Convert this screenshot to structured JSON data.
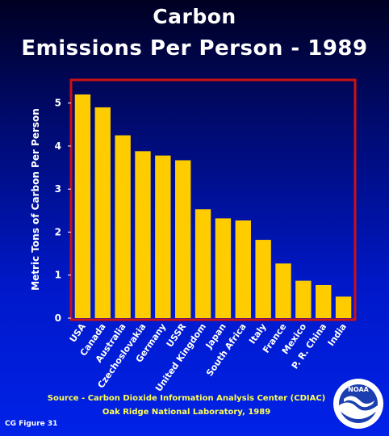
{
  "header": {
    "title_line1": "Carbon",
    "title_line2": "Emissions Per Person - 1989"
  },
  "footer": {
    "source_line1": "Source - Carbon Dioxide Information Analysis Center (CDIAC)",
    "source_line2": "Oak Ridge National Laboratory, 1989",
    "figure_label": "CG Figure 31",
    "logo_text": "NOAA"
  },
  "chart_data": {
    "type": "bar",
    "title": "Carbon Emissions Per Person - 1989",
    "ylabel": "Metric Tons of Carbon Per Person",
    "xlabel": "",
    "ylim": [
      0,
      5.5
    ],
    "yticks": [
      0,
      1,
      2,
      3,
      4,
      5
    ],
    "categories": [
      "USA",
      "Canada",
      "Australia",
      "Czechoslovakia",
      "Germany",
      "USSR",
      "United Kingdom",
      "Japan",
      "South Africa",
      "Italy",
      "France",
      "Mexico",
      "P. R. China",
      "India"
    ],
    "values": [
      5.2,
      4.9,
      4.25,
      3.88,
      3.78,
      3.67,
      2.53,
      2.32,
      2.27,
      1.82,
      1.27,
      0.87,
      0.77,
      0.5
    ],
    "colors": {
      "bar": "#ffcc00",
      "frame": "#cc1111",
      "background": "#0018c8",
      "axis_text": "#ffffff"
    },
    "grid": false,
    "legend": "none"
  }
}
